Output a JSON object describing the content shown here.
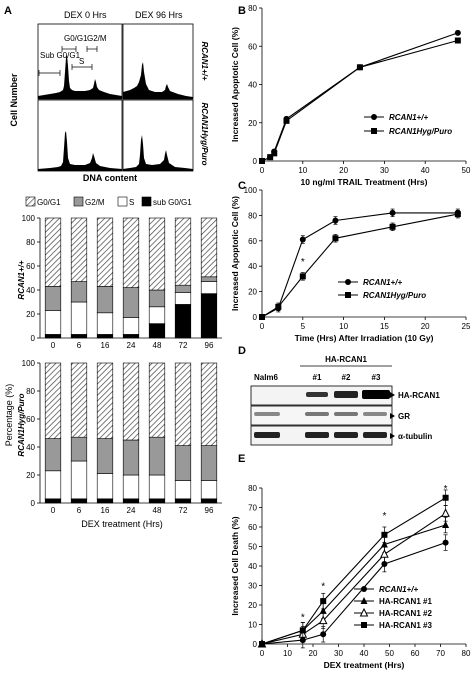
{
  "panels": {
    "A": {
      "letter": "A",
      "flow": {
        "col_titles": [
          "DEX 0 Hrs",
          "DEX 96 Hrs"
        ],
        "row_labels": [
          "RCAN1+/+",
          "RCAN1Hyg/Puro"
        ],
        "ylabel": "Cell Number",
        "xlabel": "DNA content",
        "gate_labels": [
          "Sub G0/G1",
          "G0/G1",
          "G2/M",
          "S"
        ]
      },
      "bar_legend": [
        "G0/G1",
        "G2/M",
        "S",
        "sub G0/G1"
      ],
      "bar_ylabel": "Percentage (%)",
      "bar_xlabel": "DEX treatment (Hrs)",
      "bar_row_labels": [
        "RCAN1+/+",
        "RCAN1Hyg/Puro"
      ]
    },
    "B": {
      "letter": "B"
    },
    "C": {
      "letter": "C"
    },
    "D": {
      "letter": "D",
      "header": "HA-RCAN1",
      "lanes": [
        "Nalm6",
        "#1",
        "#2",
        "#3"
      ],
      "bands": [
        "HA-RCAN1",
        "GR",
        "α-tubulin"
      ]
    },
    "E": {
      "letter": "E"
    }
  },
  "chart_data": [
    {
      "id": "A-bars-wt",
      "type": "bar",
      "stacked": true,
      "categories": [
        "0",
        "6",
        "16",
        "24",
        "48",
        "72",
        "96"
      ],
      "series": [
        {
          "name": "sub G0/G1",
          "values": [
            3,
            3,
            3,
            3,
            12,
            28,
            37
          ]
        },
        {
          "name": "S",
          "values": [
            20,
            27,
            18,
            14,
            14,
            10,
            10
          ]
        },
        {
          "name": "G2/M",
          "values": [
            20,
            17,
            22,
            25,
            14,
            6,
            4
          ]
        },
        {
          "name": "G0/G1",
          "values": [
            57,
            53,
            57,
            58,
            60,
            56,
            49
          ]
        }
      ],
      "ylim": [
        0,
        100
      ],
      "yticks": [
        0,
        20,
        40,
        60,
        80,
        100
      ]
    },
    {
      "id": "A-bars-ko",
      "type": "bar",
      "stacked": true,
      "categories": [
        "0",
        "6",
        "16",
        "24",
        "48",
        "72",
        "96"
      ],
      "series": [
        {
          "name": "sub G0/G1",
          "values": [
            3,
            3,
            3,
            3,
            3,
            3,
            3
          ]
        },
        {
          "name": "S",
          "values": [
            20,
            27,
            18,
            17,
            17,
            13,
            13
          ]
        },
        {
          "name": "G2/M",
          "values": [
            23,
            17,
            25,
            25,
            27,
            25,
            25
          ]
        },
        {
          "name": "G0/G1",
          "values": [
            54,
            53,
            54,
            55,
            53,
            59,
            59
          ]
        }
      ],
      "ylim": [
        0,
        100
      ],
      "yticks": [
        0,
        20,
        40,
        60,
        80,
        100
      ]
    },
    {
      "id": "B",
      "type": "line",
      "xlabel": "10 ng/ml TRAIL Treatment (Hrs)",
      "ylabel": "Increased Apoptotic Cell (%)",
      "xlim": [
        0,
        50
      ],
      "ylim": [
        0,
        80
      ],
      "xticks": [
        0,
        10,
        20,
        30,
        40,
        50
      ],
      "yticks": [
        0,
        20,
        40,
        60,
        80
      ],
      "legend": "right",
      "series": [
        {
          "name": "RCAN1+/+",
          "marker": "circle",
          "x": [
            0,
            2,
            3,
            6,
            24,
            48
          ],
          "y": [
            0,
            2,
            5,
            22,
            49,
            67
          ]
        },
        {
          "name": "RCAN1Hyg/Puro",
          "marker": "square",
          "x": [
            0,
            2,
            3,
            6,
            24,
            48
          ],
          "y": [
            0,
            2,
            4,
            21,
            49,
            63
          ]
        }
      ]
    },
    {
      "id": "C",
      "type": "line",
      "xlabel": "Time (Hrs) After Irradiation (10 Gy)",
      "ylabel": "Increased Apoptotic Cell (%)",
      "xlim": [
        0,
        25
      ],
      "ylim": [
        0,
        100
      ],
      "xticks": [
        0,
        5,
        10,
        15,
        20,
        25
      ],
      "yticks": [
        0,
        20,
        40,
        60,
        80,
        100
      ],
      "legend": "bottom-right",
      "annotations": [
        "*",
        "*",
        "*"
      ],
      "series": [
        {
          "name": "RCAN1+/+",
          "marker": "circle",
          "x": [
            0,
            2,
            5,
            9,
            16,
            24
          ],
          "y": [
            0,
            7,
            61,
            76,
            82,
            82
          ]
        },
        {
          "name": "RCAN1Hyg/Puro",
          "marker": "square",
          "x": [
            0,
            2,
            5,
            9,
            16,
            24
          ],
          "y": [
            0,
            8,
            32,
            62,
            71,
            81
          ]
        }
      ]
    },
    {
      "id": "E",
      "type": "line",
      "xlabel": "DEX treatment (Hrs)",
      "ylabel": "Increased Cell Death (%)",
      "xlim": [
        0,
        80
      ],
      "ylim": [
        0,
        80
      ],
      "xticks": [
        0,
        10,
        20,
        30,
        40,
        50,
        60,
        70,
        80
      ],
      "yticks": [
        0,
        10,
        20,
        30,
        40,
        50,
        60,
        70,
        80
      ],
      "legend": "bottom-right",
      "annotations": [
        "*",
        "*",
        "*",
        "*"
      ],
      "series": [
        {
          "name": "RCAN1+/+",
          "marker": "circle",
          "x": [
            0,
            16,
            24,
            48,
            72
          ],
          "y": [
            0,
            2,
            5,
            41,
            52
          ]
        },
        {
          "name": "HA-RCAN1 #1",
          "marker": "triangle",
          "x": [
            0,
            16,
            24,
            48,
            72
          ],
          "y": [
            0,
            7,
            17,
            51,
            61
          ]
        },
        {
          "name": "HA-RCAN1 #2",
          "marker": "triangle-open",
          "x": [
            0,
            16,
            24,
            48,
            72
          ],
          "y": [
            0,
            5,
            12,
            46,
            67
          ]
        },
        {
          "name": "HA-RCAN1 #3",
          "marker": "square",
          "x": [
            0,
            16,
            24,
            48,
            72
          ],
          "y": [
            0,
            7,
            22,
            56,
            75
          ]
        }
      ]
    }
  ]
}
